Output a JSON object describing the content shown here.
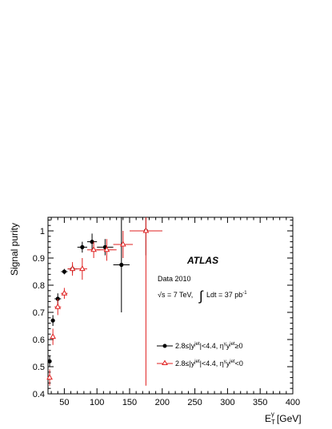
{
  "chart_data": {
    "type": "scatter",
    "ylabel": "Signal purity",
    "xlabel_main": "E",
    "xlabel_sup": "γ",
    "xlabel_sub": "T",
    "xlabel_unit": "[GeV]",
    "xlim": [
      25,
      400
    ],
    "ylim": [
      0.4,
      1.05
    ],
    "x_ticks": [
      50,
      100,
      150,
      200,
      250,
      300,
      350,
      400
    ],
    "y_ticks": [
      0.4,
      0.5,
      0.6,
      0.7,
      0.8,
      0.9,
      1
    ],
    "grid": false,
    "legend_position": "bottom-right",
    "annotations": {
      "experiment": "ATLAS",
      "dataset": "Data 2010",
      "energy": "√s = 7 TeV,",
      "lumi": "Ldt = 37 pb",
      "lumi_exp": "-1"
    },
    "series": [
      {
        "name": "2.8≤|y^jet|<4.4, η^γ y^jet ≥ 0",
        "legend": {
          "base": "2.8≤|y",
          "sup1": "jet",
          "mid": "|<4.4, η",
          "sup2": "γ",
          "mid2": "y",
          "sup3": "jet",
          "end": "≥0"
        },
        "color": "#000000",
        "marker": "filled-circle",
        "x": [
          27.5,
          32.5,
          40,
          50,
          62.5,
          77.5,
          92.5,
          112.5,
          137.5,
          175
        ],
        "xerr": [
          2.5,
          2.5,
          5,
          5,
          7.5,
          7.5,
          7.5,
          12.5,
          12.5,
          25
        ],
        "y": [
          0.52,
          0.67,
          0.75,
          0.85,
          0.86,
          0.94,
          0.96,
          0.94,
          0.875,
          1.0
        ],
        "yerr": [
          0.02,
          0.02,
          0.02,
          0.01,
          0.015,
          0.02,
          0.03,
          0.03,
          0.175,
          0.09
        ]
      },
      {
        "name": "2.8≤|y^jet|<4.4, η^γ y^jet < 0",
        "legend": {
          "base": "2.8≤|y",
          "sup1": "jet",
          "mid": "|<4.4, η",
          "sup2": "γ",
          "mid2": "y",
          "sup3": "jet",
          "end": "<0"
        },
        "color": "#e02020",
        "marker": "open-triangle",
        "x": [
          27.5,
          32.5,
          40,
          50,
          62.5,
          77.5,
          95,
          115,
          140,
          175
        ],
        "xerr": [
          2.5,
          2.5,
          5,
          5,
          7.5,
          7.5,
          10,
          15,
          15,
          25
        ],
        "y": [
          0.46,
          0.61,
          0.72,
          0.77,
          0.86,
          0.86,
          0.93,
          0.93,
          0.95,
          1.0
        ],
        "yerr": [
          0.03,
          0.03,
          0.03,
          0.02,
          0.025,
          0.04,
          0.03,
          0.04,
          0.05,
          0.57
        ]
      }
    ]
  }
}
